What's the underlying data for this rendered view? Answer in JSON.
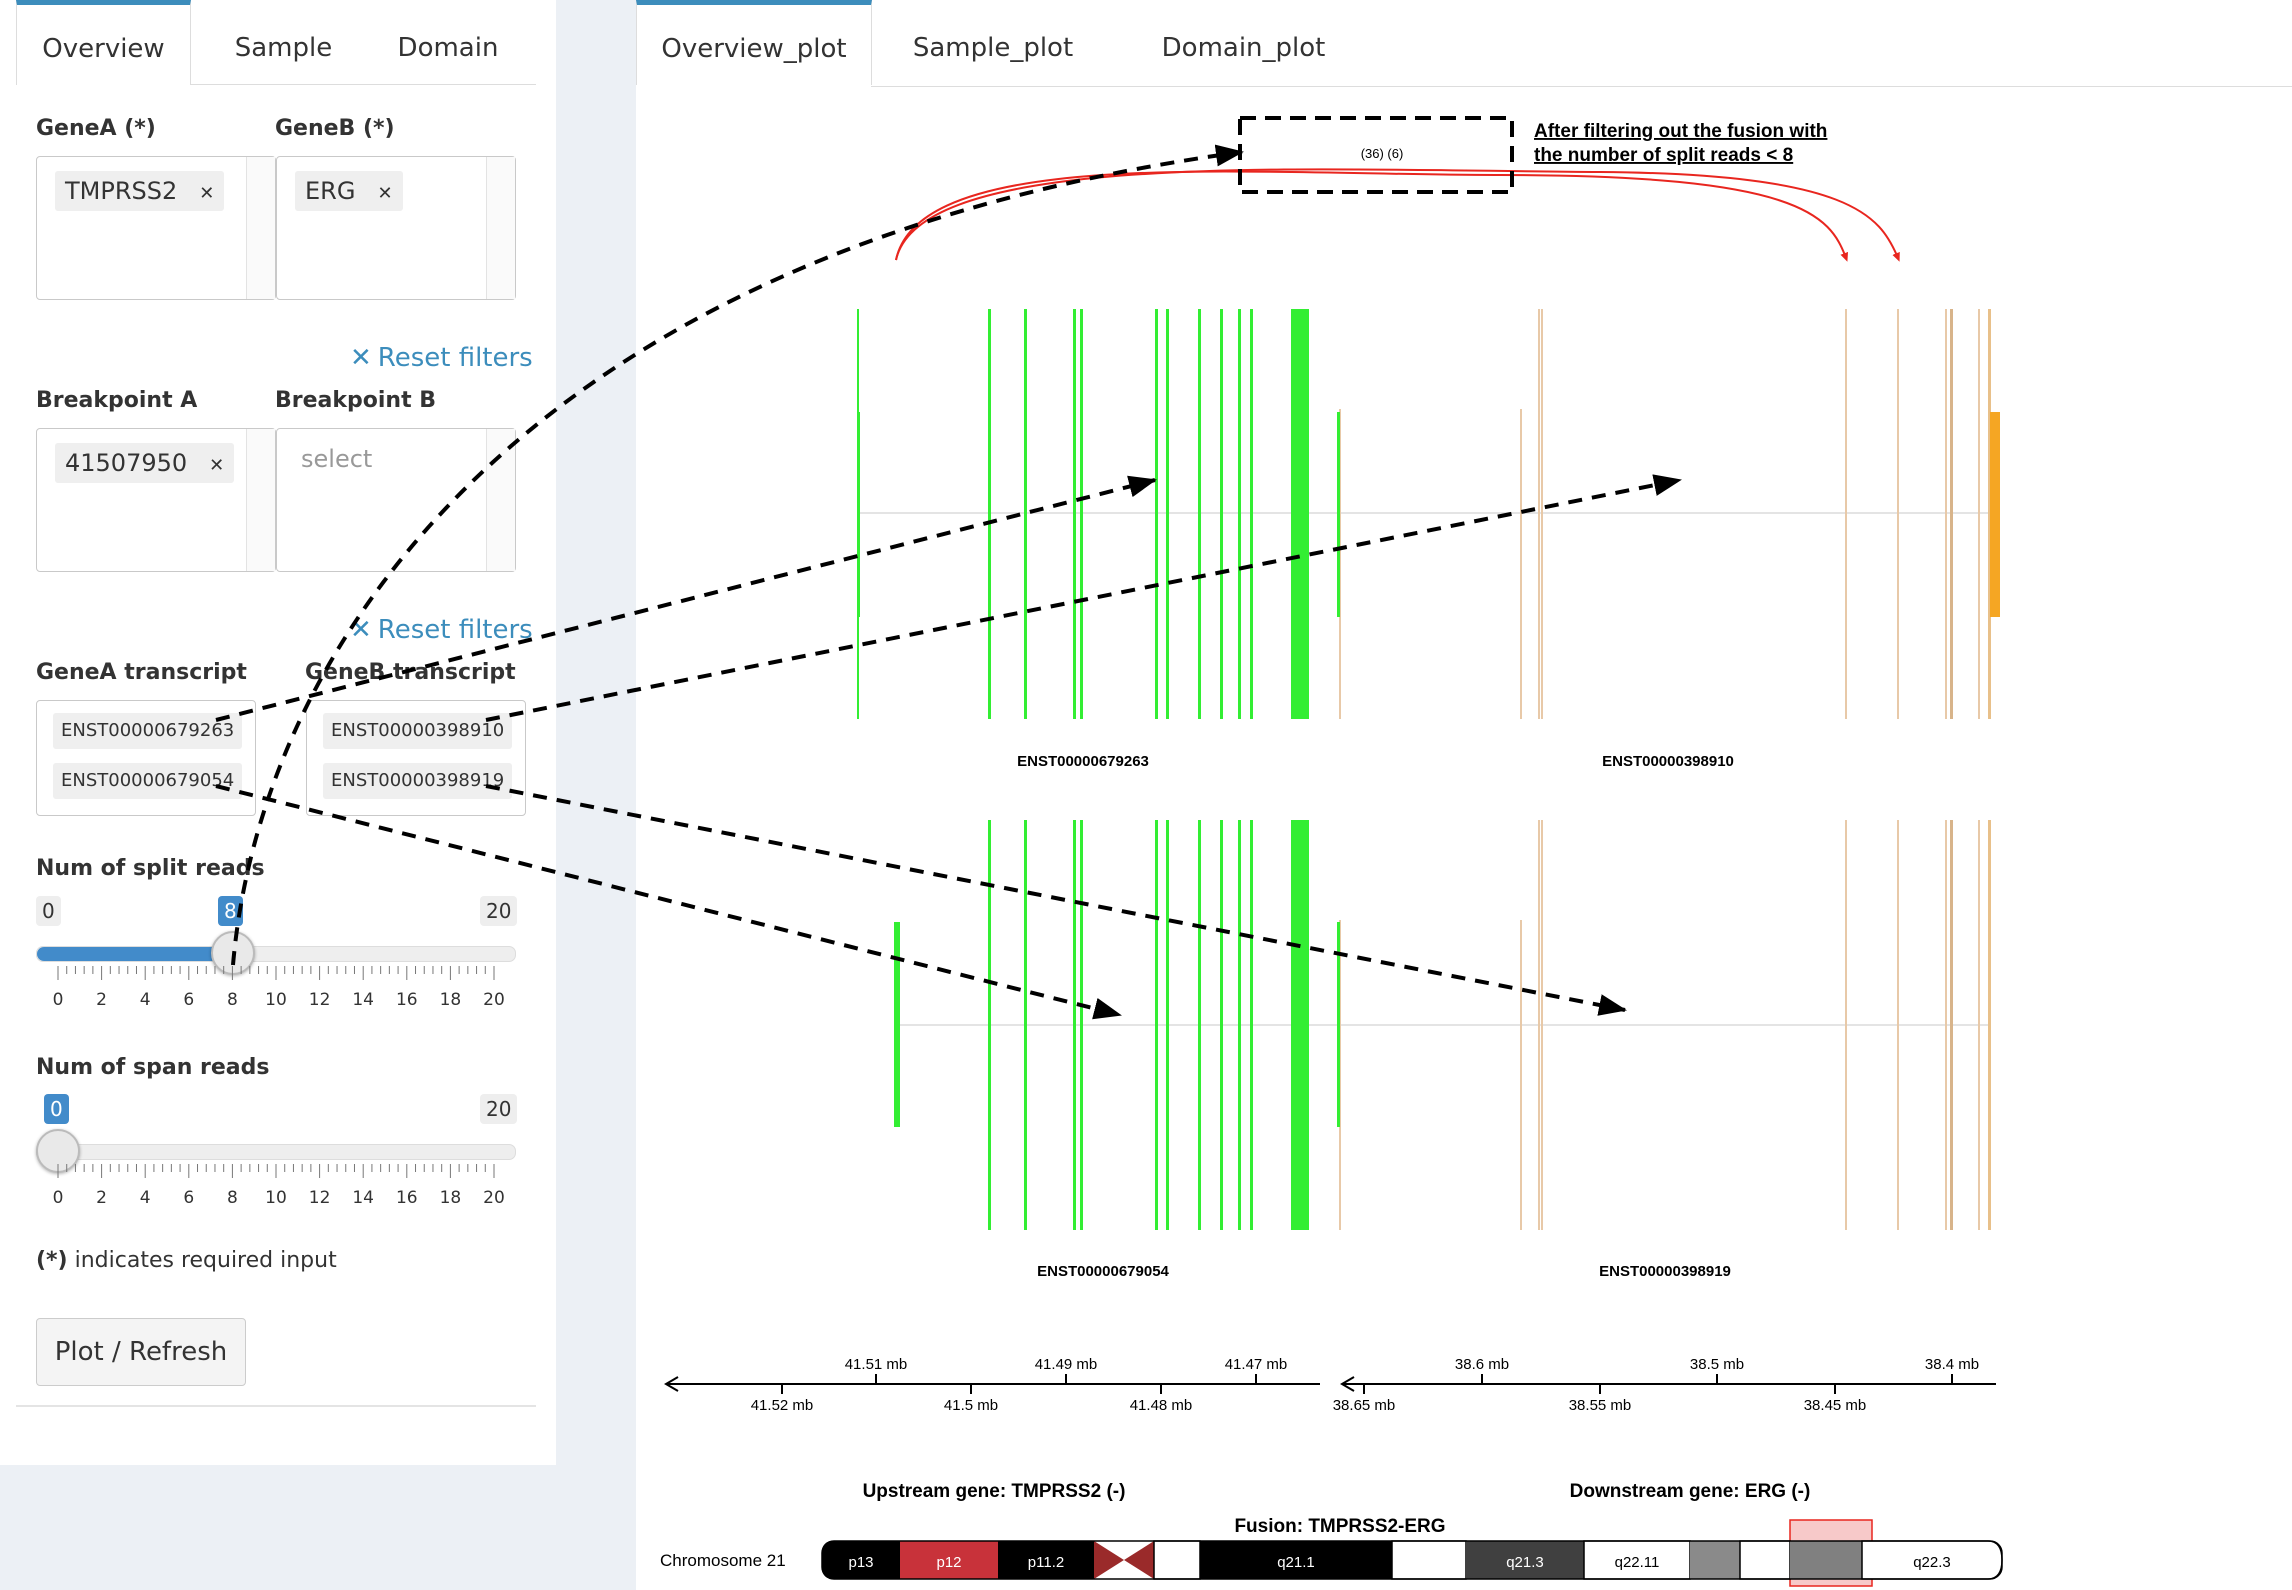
{
  "sidebar": {
    "tabs": [
      "Overview",
      "Sample",
      "Domain"
    ],
    "geneA": {
      "label": "GeneA (*)",
      "value": "TMPRSS2"
    },
    "geneB": {
      "label": "GeneB (*)",
      "value": "ERG"
    },
    "reset_label": "Reset filters",
    "breakpointA": {
      "label": "Breakpoint A",
      "value": "41507950"
    },
    "breakpointB": {
      "label": "Breakpoint B",
      "placeholder": "select"
    },
    "geneA_transcript": {
      "label": "GeneA transcript",
      "values": [
        "ENST00000679263",
        "ENST00000679054"
      ]
    },
    "geneB_transcript": {
      "label": "GeneB transcript",
      "values": [
        "ENST00000398910",
        "ENST00000398919"
      ]
    },
    "split_reads": {
      "label": "Num of split reads",
      "min": "0",
      "max": "20",
      "value": "8"
    },
    "span_reads": {
      "label": "Num of span reads",
      "min": "0",
      "max": "20",
      "value": "0"
    },
    "slider_ticks": [
      "0",
      "2",
      "4",
      "6",
      "8",
      "10",
      "12",
      "14",
      "16",
      "18",
      "20"
    ],
    "required_note_bold": "(*)",
    "required_note_text": " indicates required input",
    "plot_button": "Plot / Refresh"
  },
  "main": {
    "tabs": [
      "Overview_plot",
      "Sample_plot",
      "Domain_plot"
    ],
    "plot": {
      "annotation_line1": "After filtering out the fusion with",
      "annotation_line2": "the number of split reads < 8",
      "junction_counts": "(36) (6)",
      "transcripts_top": [
        "ENST00000679263",
        "ENST00000398910"
      ],
      "transcripts_bottom": [
        "ENST00000679054",
        "ENST00000398919"
      ],
      "axis_left_top": [
        "41.51 mb",
        "41.49 mb",
        "41.47 mb"
      ],
      "axis_left_bottom": [
        "41.52 mb",
        "41.5 mb",
        "41.48 mb"
      ],
      "axis_right_top": [
        "38.6 mb",
        "38.5 mb",
        "38.4 mb"
      ],
      "axis_right_bottom": [
        "38.65 mb",
        "38.55 mb",
        "38.45 mb"
      ],
      "upstream_label": "Upstream gene: TMPRSS2 (-)",
      "downstream_label": "Downstream gene: ERG (-)",
      "fusion_label": "Fusion: TMPRSS2-ERG",
      "chromosome_label": "Chromosome 21",
      "bands": [
        "p13",
        "p12",
        "p11.2",
        "q21.1",
        "q21.3",
        "q22.11",
        "q22.3"
      ],
      "colors": {
        "geneA": "#33ee33",
        "geneB_light": "#e8c9a8",
        "geneB_dark": "#f5a623",
        "junction": "#e8261f",
        "band_red": "#c8323a",
        "highlight": "#f7c9c9"
      }
    }
  }
}
